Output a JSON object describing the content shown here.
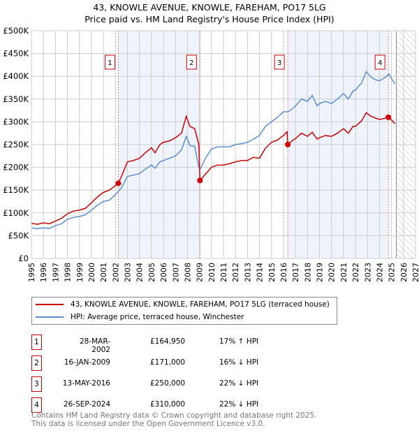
{
  "header": {
    "title": "43, KNOWLE AVENUE, KNOWLE, FAREHAM, PO17 5LG",
    "subtitle": "Price paid vs. HM Land Registry's House Price Index (HPI)"
  },
  "chart_data": {
    "type": "line",
    "title": "43, KNOWLE AVENUE, KNOWLE, FAREHAM, PO17 5LG",
    "subtitle": "Price paid vs. HM Land Registry's House Price Index (HPI)",
    "xlim": [
      1995,
      2027
    ],
    "ylim": [
      0,
      500000
    ],
    "x_ticks": [
      "1995",
      "1996",
      "1997",
      "1998",
      "1999",
      "2000",
      "2001",
      "2002",
      "2003",
      "2004",
      "2005",
      "2006",
      "2007",
      "2008",
      "2009",
      "2010",
      "2011",
      "2012",
      "2013",
      "2014",
      "2015",
      "2016",
      "2017",
      "2018",
      "2019",
      "2020",
      "2021",
      "2022",
      "2023",
      "2024",
      "2025",
      "2026",
      "2027"
    ],
    "y_ticks": [
      "£0",
      "£50K",
      "£100K",
      "£150K",
      "£200K",
      "£250K",
      "£300K",
      "£350K",
      "£400K",
      "£450K",
      "£500K"
    ],
    "grid": true,
    "forecast_hatch_start": 2025.4,
    "series": [
      {
        "name": "43, KNOWLE AVENUE, KNOWLE, FAREHAM, PO17 5LG (terraced house)",
        "color": "#cc0000",
        "points": [
          [
            1995,
            77
          ],
          [
            1995.5,
            75
          ],
          [
            1996,
            78
          ],
          [
            1996.5,
            76
          ],
          [
            1997,
            82
          ],
          [
            1997.5,
            88
          ],
          [
            1998,
            98
          ],
          [
            1998.5,
            104
          ],
          [
            1999,
            106
          ],
          [
            1999.5,
            110
          ],
          [
            2000,
            122
          ],
          [
            2000.5,
            135
          ],
          [
            2001,
            145
          ],
          [
            2001.5,
            150
          ],
          [
            2002,
            160
          ],
          [
            2002.24,
            165
          ],
          [
            2002.5,
            180
          ],
          [
            2003,
            212
          ],
          [
            2003.5,
            215
          ],
          [
            2004,
            220
          ],
          [
            2004.5,
            232
          ],
          [
            2005,
            243
          ],
          [
            2005.3,
            232
          ],
          [
            2005.7,
            250
          ],
          [
            2006,
            255
          ],
          [
            2006.5,
            258
          ],
          [
            2007,
            265
          ],
          [
            2007.5,
            275
          ],
          [
            2007.9,
            312
          ],
          [
            2008.2,
            290
          ],
          [
            2008.6,
            285
          ],
          [
            2008.95,
            250
          ],
          [
            2009.04,
            171
          ],
          [
            2009.5,
            185
          ],
          [
            2010,
            200
          ],
          [
            2010.5,
            205
          ],
          [
            2011,
            205
          ],
          [
            2011.5,
            208
          ],
          [
            2012,
            212
          ],
          [
            2012.5,
            215
          ],
          [
            2013,
            215
          ],
          [
            2013.5,
            222
          ],
          [
            2014,
            220
          ],
          [
            2014.5,
            242
          ],
          [
            2015,
            255
          ],
          [
            2015.5,
            260
          ],
          [
            2016,
            270
          ],
          [
            2016.3,
            278
          ],
          [
            2016.36,
            250
          ],
          [
            2016.8,
            260
          ],
          [
            2017,
            263
          ],
          [
            2017.5,
            275
          ],
          [
            2018,
            268
          ],
          [
            2018.4,
            277
          ],
          [
            2018.8,
            262
          ],
          [
            2019,
            265
          ],
          [
            2019.5,
            270
          ],
          [
            2020,
            268
          ],
          [
            2020.5,
            275
          ],
          [
            2021,
            285
          ],
          [
            2021.4,
            275
          ],
          [
            2021.8,
            290
          ],
          [
            2022,
            290
          ],
          [
            2022.5,
            302
          ],
          [
            2022.9,
            320
          ],
          [
            2023.3,
            312
          ],
          [
            2023.7,
            308
          ],
          [
            2024,
            305
          ],
          [
            2024.5,
            308
          ],
          [
            2024.74,
            310
          ],
          [
            2025,
            304
          ],
          [
            2025.3,
            296
          ]
        ]
      },
      {
        "name": "HPI: Average price, terraced house, Winchester",
        "color": "#5b8fd0",
        "points": [
          [
            1995,
            67
          ],
          [
            1995.5,
            65
          ],
          [
            1996,
            67
          ],
          [
            1996.5,
            66
          ],
          [
            1997,
            72
          ],
          [
            1997.5,
            76
          ],
          [
            1998,
            86
          ],
          [
            1998.5,
            90
          ],
          [
            1999,
            92
          ],
          [
            1999.5,
            96
          ],
          [
            2000,
            106
          ],
          [
            2000.5,
            117
          ],
          [
            2001,
            125
          ],
          [
            2001.5,
            128
          ],
          [
            2002,
            140
          ],
          [
            2002.5,
            155
          ],
          [
            2003,
            180
          ],
          [
            2003.5,
            183
          ],
          [
            2004,
            186
          ],
          [
            2004.5,
            196
          ],
          [
            2005,
            205
          ],
          [
            2005.3,
            198
          ],
          [
            2005.7,
            212
          ],
          [
            2006,
            215
          ],
          [
            2006.5,
            220
          ],
          [
            2007,
            225
          ],
          [
            2007.5,
            238
          ],
          [
            2007.9,
            268
          ],
          [
            2008.2,
            248
          ],
          [
            2008.6,
            246
          ],
          [
            2008.95,
            200
          ],
          [
            2009.1,
            198
          ],
          [
            2009.5,
            220
          ],
          [
            2010,
            240
          ],
          [
            2010.5,
            245
          ],
          [
            2011,
            245
          ],
          [
            2011.5,
            245
          ],
          [
            2012,
            250
          ],
          [
            2012.5,
            252
          ],
          [
            2013,
            255
          ],
          [
            2013.5,
            262
          ],
          [
            2014,
            270
          ],
          [
            2014.5,
            290
          ],
          [
            2015,
            300
          ],
          [
            2015.5,
            310
          ],
          [
            2016,
            322
          ],
          [
            2016.4,
            322
          ],
          [
            2016.8,
            330
          ],
          [
            2017,
            335
          ],
          [
            2017.5,
            350
          ],
          [
            2018,
            345
          ],
          [
            2018.4,
            358
          ],
          [
            2018.8,
            335
          ],
          [
            2019,
            340
          ],
          [
            2019.5,
            345
          ],
          [
            2020,
            340
          ],
          [
            2020.5,
            350
          ],
          [
            2021,
            362
          ],
          [
            2021.4,
            350
          ],
          [
            2021.8,
            368
          ],
          [
            2022,
            370
          ],
          [
            2022.5,
            385
          ],
          [
            2022.9,
            410
          ],
          [
            2023.3,
            398
          ],
          [
            2023.7,
            392
          ],
          [
            2024,
            390
          ],
          [
            2024.5,
            398
          ],
          [
            2024.8,
            405
          ],
          [
            2025,
            395
          ],
          [
            2025.3,
            383
          ]
        ]
      }
    ],
    "sales": [
      {
        "n": "1",
        "x": 2002.24,
        "value": 164950
      },
      {
        "n": "2",
        "x": 2009.04,
        "value": 171000
      },
      {
        "n": "3",
        "x": 2016.36,
        "value": 250000
      },
      {
        "n": "4",
        "x": 2024.74,
        "value": 310000
      }
    ],
    "shaded_ranges": [
      [
        2002.24,
        2009.04
      ],
      [
        2016.36,
        2024.74
      ]
    ]
  },
  "legend": {
    "items": [
      {
        "label": "43, KNOWLE AVENUE, KNOWLE, FAREHAM, PO17 5LG (terraced house)",
        "color": "#cc0000"
      },
      {
        "label": "HPI: Average price, terraced house, Winchester",
        "color": "#5b8fd0"
      }
    ]
  },
  "transactions": [
    {
      "n": "1",
      "date": "28-MAR-2002",
      "price": "£164,950",
      "hpi": "17% ↑ HPI"
    },
    {
      "n": "2",
      "date": "16-JAN-2009",
      "price": "£171,000",
      "hpi": "16% ↓ HPI"
    },
    {
      "n": "3",
      "date": "13-MAY-2016",
      "price": "£250,000",
      "hpi": "22% ↓ HPI"
    },
    {
      "n": "4",
      "date": "26-SEP-2024",
      "price": "£310,000",
      "hpi": "22% ↓ HPI"
    }
  ],
  "footer": {
    "line1": "Contains HM Land Registry data © Crown copyright and database right 2025.",
    "line2": "This data is licensed under the Open Government Licence v3.0."
  }
}
